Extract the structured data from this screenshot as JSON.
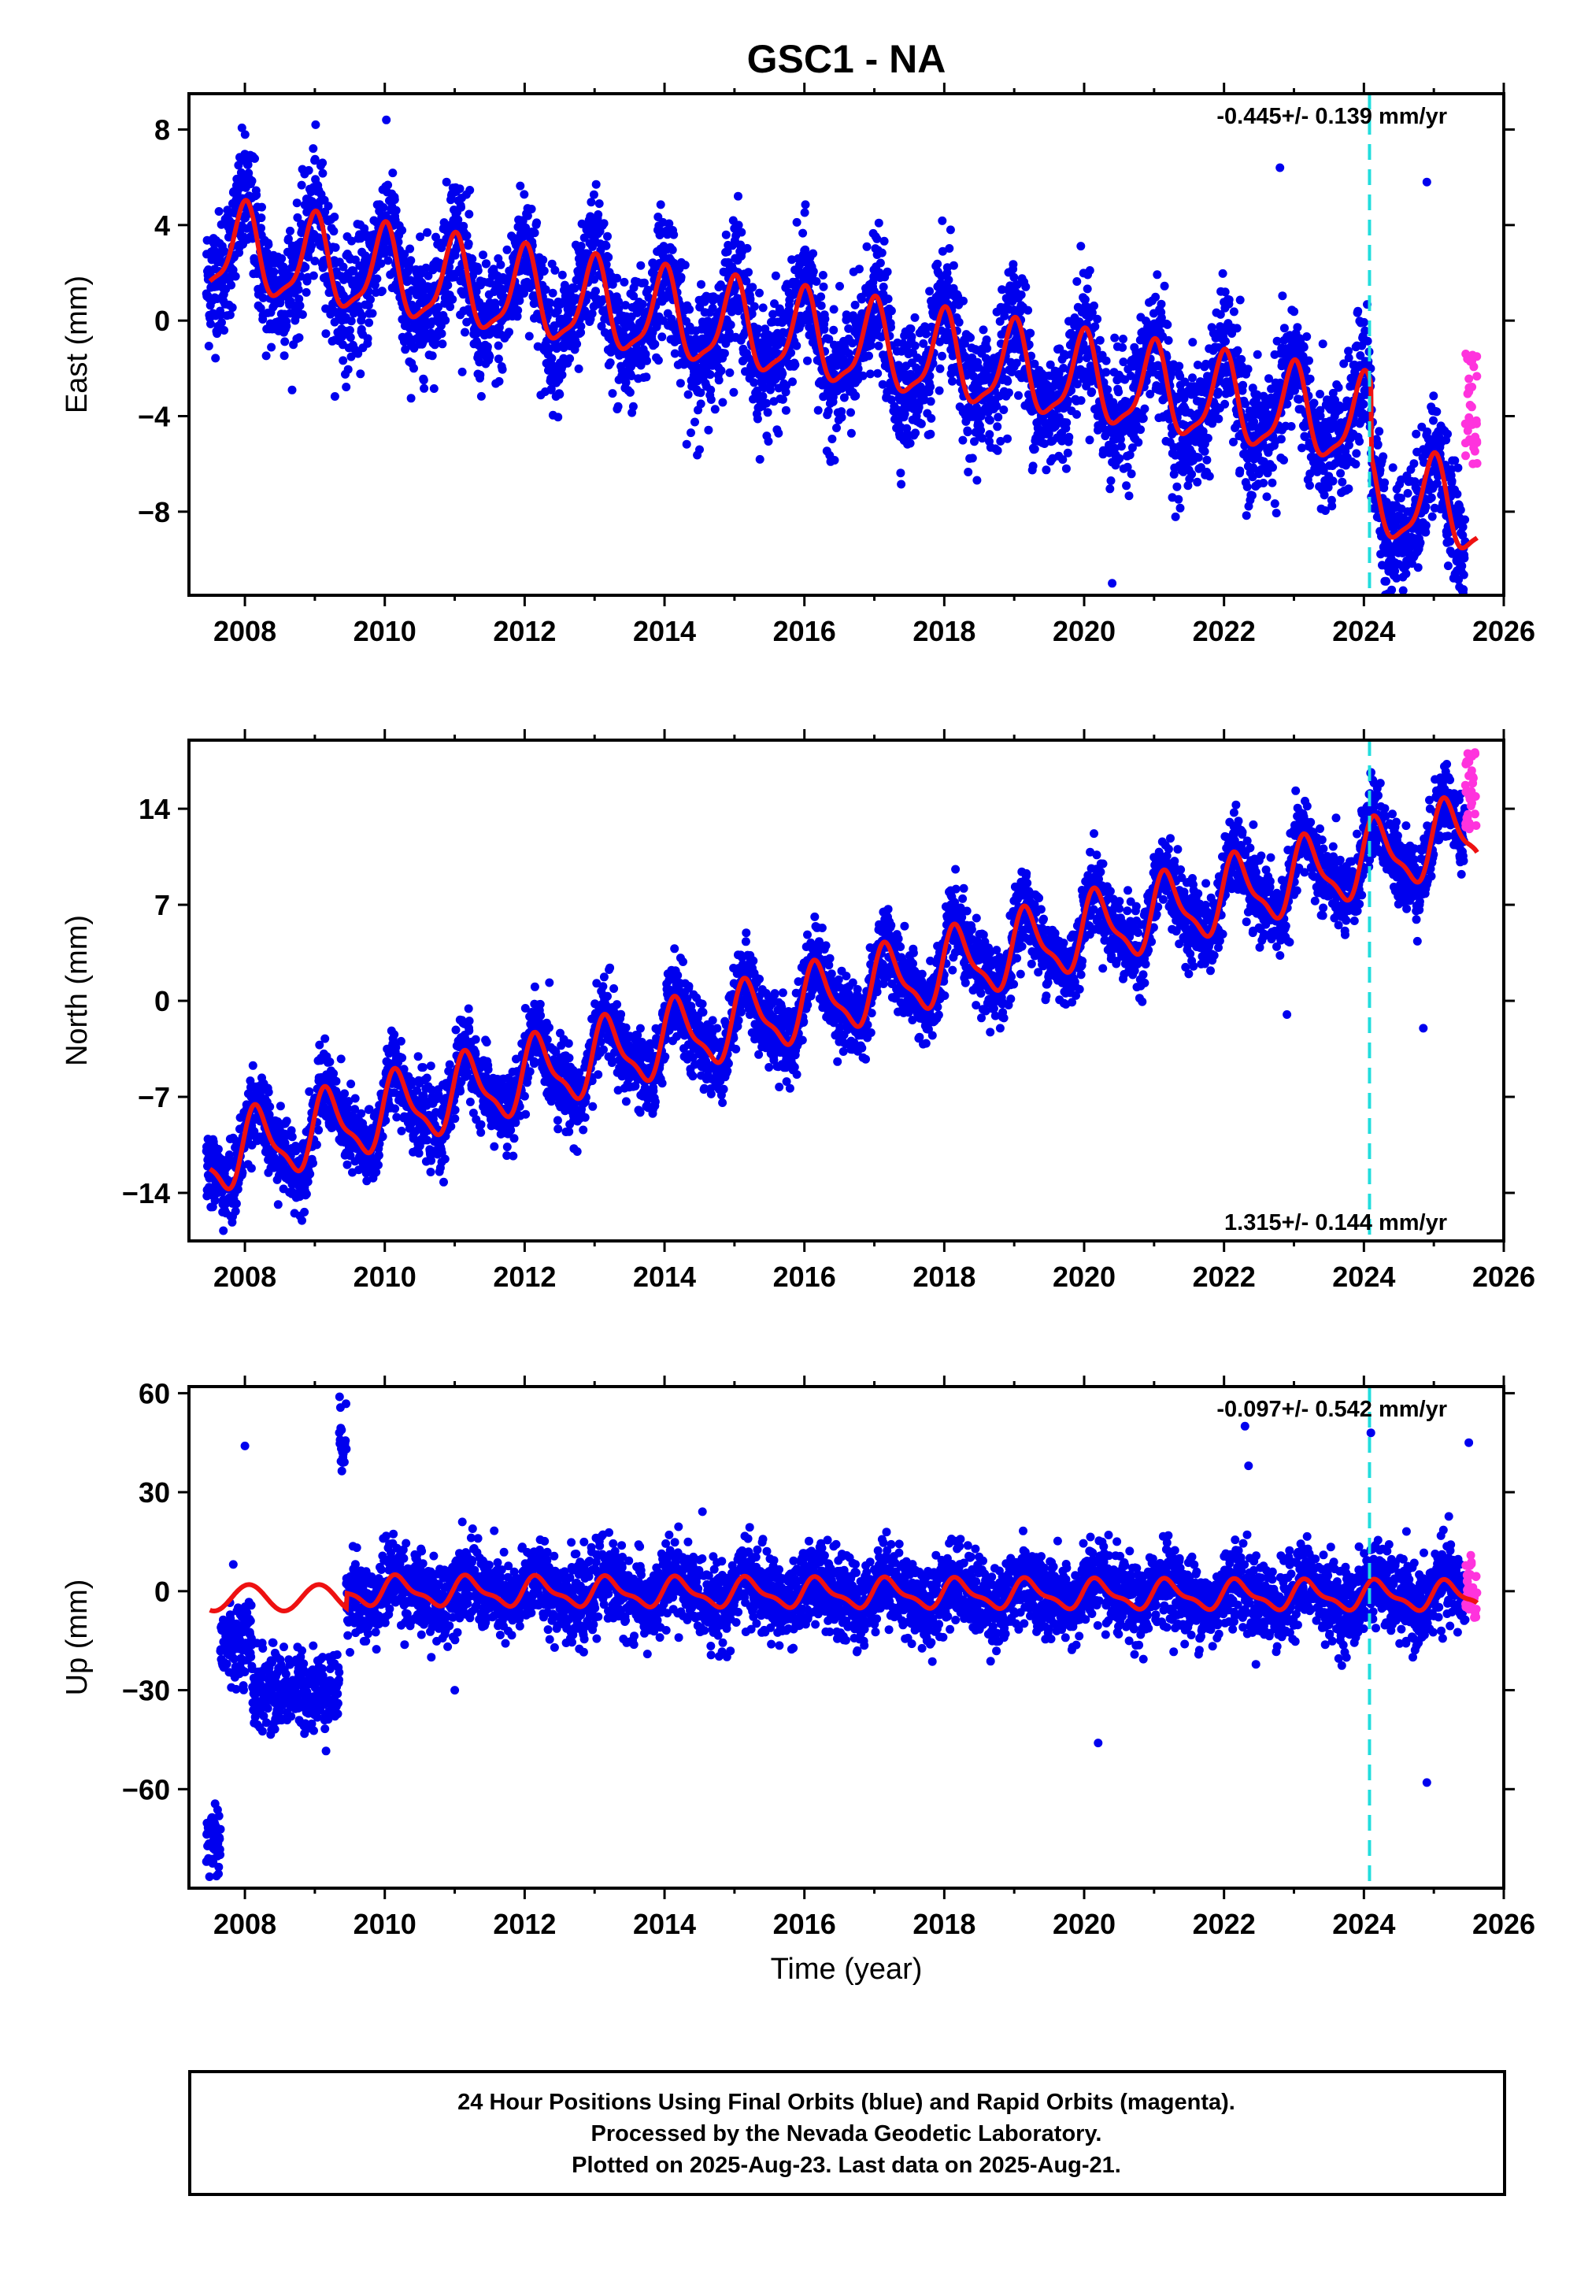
{
  "chart_data": {
    "type": "scatter",
    "title": "GSC1 - NA",
    "xlabel": "Time (year)",
    "xlim": [
      2007.2,
      2026.0
    ],
    "xticks": [
      2008,
      2010,
      2012,
      2014,
      2016,
      2018,
      2020,
      2022,
      2024,
      2026
    ],
    "vertical_marker_year": 2024.08,
    "colors": {
      "final": "#0000ee",
      "rapid": "#ff33dd",
      "model": "#ee1111",
      "marker": "#22dddd"
    },
    "panels": [
      {
        "name": "east",
        "ylabel": "East (mm)",
        "ylim": [
          -11.5,
          9.5
        ],
        "yticks": [
          -8,
          -4,
          0,
          4,
          8
        ],
        "rate_text": "-0.445+/- 0.139 mm/yr",
        "rate_position": "top-right",
        "model": {
          "start_year": 2007.5,
          "start_value": 3.0,
          "trend_per_year": -0.445,
          "annual_amp": 1.8,
          "phase": 1.6,
          "semi_amp": 0.5,
          "noise": 1.3,
          "steps": [
            {
              "year": 2024.1,
              "size": -3.0
            }
          ]
        },
        "outliers": [
          {
            "x": 2022.8,
            "y": 6.4
          },
          {
            "x": 2024.9,
            "y": 5.8
          },
          {
            "x": 2020.4,
            "y": -11.0
          },
          {
            "x": 2014.5,
            "y": -5.4
          }
        ],
        "rapid": {
          "x_start": 2025.45,
          "x_end": 2025.62,
          "y_min": -6.0,
          "y_max": -1.2
        }
      },
      {
        "name": "north",
        "ylabel": "North (mm)",
        "ylim": [
          -17.5,
          19.0
        ],
        "yticks": [
          -14,
          -7,
          0,
          7,
          14
        ],
        "rate_text": "1.315+/- 0.144 mm/yr",
        "rate_position": "bottom-right",
        "model": {
          "start_year": 2007.5,
          "start_value": -11.5,
          "trend_per_year": 1.315,
          "annual_amp": 2.5,
          "phase": 0.4,
          "semi_amp": 0.8,
          "noise": 1.4,
          "steps": []
        },
        "outliers": [
          {
            "x": 2024.85,
            "y": -2.0
          },
          {
            "x": 2022.9,
            "y": -1.0
          },
          {
            "x": 2018.8,
            "y": -2.0
          }
        ],
        "rapid": {
          "x_start": 2025.45,
          "x_end": 2025.62,
          "y_min": 12.5,
          "y_max": 18.5
        }
      },
      {
        "name": "up",
        "ylabel": "Up (mm)",
        "ylim": [
          -90,
          62
        ],
        "yticks": [
          -60,
          -30,
          0,
          30,
          60
        ],
        "rate_text": "-0.097+/- 0.542 mm/yr",
        "rate_position": "top-right",
        "model": {
          "start_year": 2009.45,
          "start_value": 0.0,
          "trend_per_year": -0.097,
          "annual_amp": 4.0,
          "phase": 0.3,
          "semi_amp": 1.5,
          "noise": 6.0,
          "steps": []
        },
        "early_clusters": [
          {
            "x_start": 2007.45,
            "x_end": 2007.65,
            "y_center": -75,
            "spread": 5
          },
          {
            "x_start": 2007.65,
            "x_end": 2008.1,
            "y_center": -17,
            "spread": 7
          },
          {
            "x_start": 2008.1,
            "x_end": 2009.35,
            "y_center": -30,
            "spread": 6
          },
          {
            "x_start": 2009.35,
            "x_end": 2009.45,
            "y_center": 46,
            "spread": 5
          }
        ],
        "outliers": [
          {
            "x": 2008.0,
            "y": 44
          },
          {
            "x": 2022.3,
            "y": 50
          },
          {
            "x": 2022.35,
            "y": 38
          },
          {
            "x": 2024.1,
            "y": 48
          },
          {
            "x": 2024.9,
            "y": -58
          },
          {
            "x": 2020.2,
            "y": -46
          },
          {
            "x": 2011.0,
            "y": -30
          },
          {
            "x": 2025.5,
            "y": 45
          }
        ],
        "rapid": {
          "x_start": 2025.45,
          "x_end": 2025.62,
          "y_min": -8,
          "y_max": 11
        }
      }
    ],
    "footer_lines": [
      "24 Hour Positions Using Final Orbits (blue) and Rapid Orbits (magenta).",
      "Processed by the Nevada Geodetic Laboratory.",
      "Plotted on 2025-Aug-23. Last data on 2025-Aug-21."
    ]
  }
}
